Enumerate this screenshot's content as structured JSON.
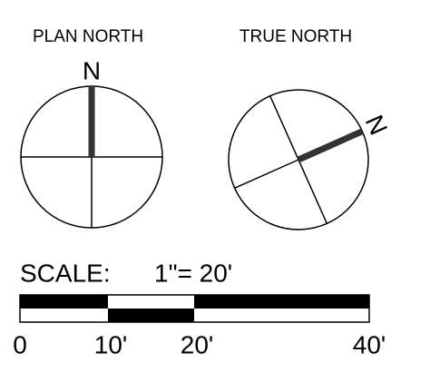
{
  "plan_north": {
    "title": "PLAN NORTH",
    "north_label": "N"
  },
  "true_north": {
    "title": "TRUE NORTH",
    "north_label": "N"
  },
  "scale": {
    "label": "SCALE:",
    "ratio": "1\"= 20'",
    "ticks": [
      "0",
      "10'",
      "20'",
      "40'"
    ]
  }
}
